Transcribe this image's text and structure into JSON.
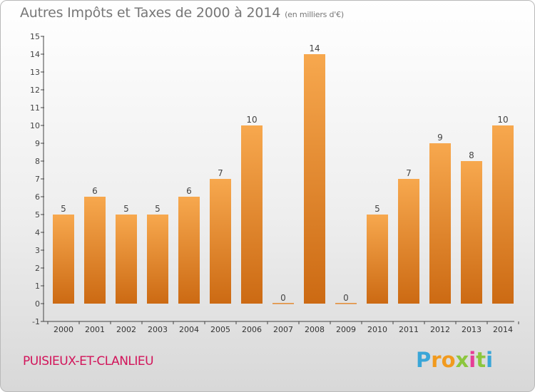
{
  "title": {
    "main": "Autres Impôts et Taxes de 2000 à 2014",
    "unit": "(en milliers d'€)"
  },
  "commune": "PUISIEUX-ET-CLANLIEU",
  "logo": {
    "text": "Proxiti"
  },
  "colors": {
    "bar_top": "#f7a84e",
    "bar_bottom": "#cc6a13",
    "commune": "#d2145a"
  },
  "chart_data": {
    "type": "bar",
    "title": "Autres Impôts et Taxes de 2000 à 2014",
    "subtitle": "(en milliers d'€)",
    "categories": [
      "2000",
      "2001",
      "2002",
      "2003",
      "2004",
      "2005",
      "2006",
      "2007",
      "2008",
      "2009",
      "2010",
      "2011",
      "2012",
      "2013",
      "2014"
    ],
    "values": [
      5,
      6,
      5,
      5,
      6,
      7,
      10,
      0,
      14,
      0,
      5,
      7,
      9,
      8,
      10
    ],
    "ylim": [
      -1,
      15
    ],
    "yticks": [
      -1,
      0,
      1,
      2,
      3,
      4,
      5,
      6,
      7,
      8,
      9,
      10,
      11,
      12,
      13,
      14,
      15
    ],
    "xlabel": "",
    "ylabel": "",
    "grid": false,
    "data_labels": true
  }
}
